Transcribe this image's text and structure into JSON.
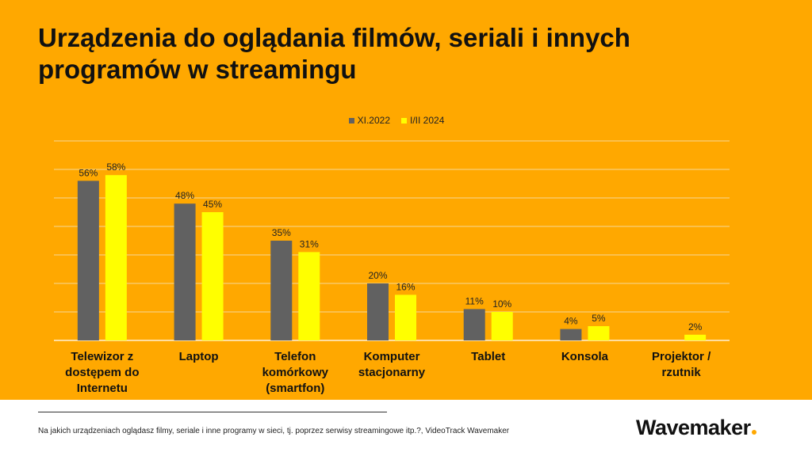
{
  "title": "Urządzenia do oglądania filmów, seriali i innych programów w streamingu",
  "colors": {
    "background": "#FFA800",
    "series1": "#616161",
    "series2": "#FFFF00",
    "grid": "#F6D999"
  },
  "chart_data": {
    "type": "bar",
    "title": "Urządzenia do oglądania filmów, seriali i innych programów w streamingu",
    "categories": [
      [
        "Telewizor z",
        "dostępem do",
        "Internetu"
      ],
      [
        "Laptop"
      ],
      [
        "Telefon",
        "komórkowy",
        "(smartfon)"
      ],
      [
        "Komputer",
        "stacjonarny"
      ],
      [
        "Tablet"
      ],
      [
        "Konsola"
      ],
      [
        "Projektor /",
        "rzutnik"
      ]
    ],
    "series": [
      {
        "name": "XI.2022",
        "values": [
          56,
          48,
          35,
          20,
          11,
          4,
          null
        ],
        "labels": [
          "56%",
          "48%",
          "35%",
          "20%",
          "11%",
          "4%",
          ""
        ]
      },
      {
        "name": "I/II 2024",
        "values": [
          58,
          45,
          31,
          16,
          10,
          5,
          2
        ],
        "labels": [
          "58%",
          "45%",
          "31%",
          "16%",
          "10%",
          "5%",
          "2%"
        ]
      }
    ],
    "ylim": [
      0,
      70
    ],
    "ytick_step": 10,
    "grid": true,
    "legend_position": "top-center",
    "xlabel": "",
    "ylabel": ""
  },
  "footnote": "Na jakich urządzeniach oglądasz filmy, seriale i inne programy w sieci, tj. poprzez serwisy streamingowe itp.?, VideoTrack Wavemaker",
  "logo": {
    "text": "Wavemaker"
  }
}
